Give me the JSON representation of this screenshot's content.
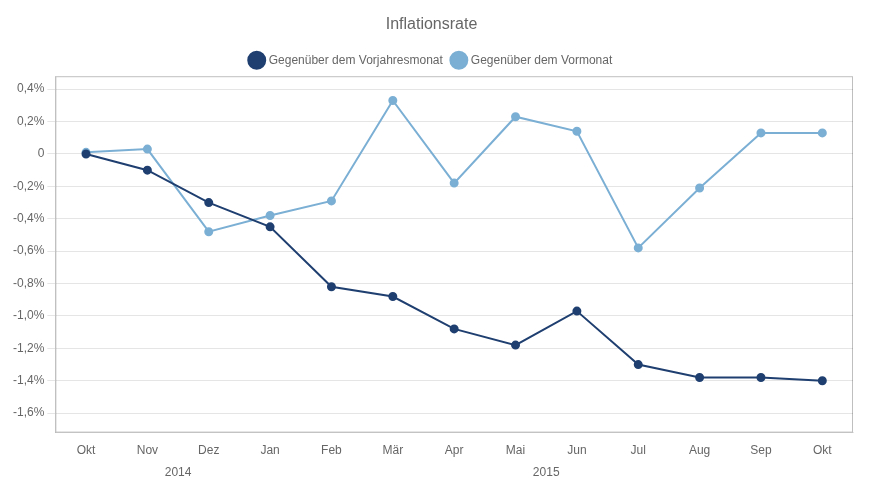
{
  "chart_data": {
    "type": "line",
    "title": "Inflationsrate",
    "categories": [
      "Okt",
      "Nov",
      "Dez",
      "Jan",
      "Feb",
      "Mär",
      "Apr",
      "Mai",
      "Jun",
      "Jul",
      "Aug",
      "Sep",
      "Okt"
    ],
    "series": [
      {
        "name": "Gegenüber dem Vorjahresmonat",
        "color": "#1f3f70",
        "marker": "circle",
        "values": [
          0.0,
          -0.1,
          -0.3,
          -0.45,
          -0.82,
          -0.88,
          -1.08,
          -1.18,
          -0.97,
          -1.3,
          -1.38,
          -1.38,
          -1.4
        ]
      },
      {
        "name": "Gegenüber dem Vormonat",
        "color": "#7bafd4",
        "marker": "circle",
        "values": [
          0.01,
          0.03,
          -0.48,
          -0.38,
          -0.29,
          0.33,
          -0.18,
          0.23,
          0.14,
          -0.58,
          -0.21,
          0.13,
          0.13
        ]
      }
    ],
    "ylim": [
      -1.72,
      0.48
    ],
    "yticks": [
      {
        "value": 0.4,
        "label": "0,4%"
      },
      {
        "value": 0.2,
        "label": "0,2%"
      },
      0.0,
      {
        "value": -0.2,
        "label": "-0,2%"
      },
      {
        "value": -0.4,
        "label": "-0,4%"
      },
      {
        "value": -0.6,
        "label": "-0,6%"
      },
      {
        "value": -0.8,
        "label": "-0,8%"
      },
      {
        "value": -1.0,
        "label": "-1,0%"
      },
      {
        "value": -1.2,
        "label": "-1,2%"
      },
      {
        "value": -1.4,
        "label": "-1,4%"
      },
      {
        "value": -1.6,
        "label": "-1,6%"
      }
    ],
    "annotations": [
      {
        "text": "2014",
        "x": 1.5
      },
      {
        "text": "2015",
        "x": 7.5
      }
    ],
    "grid": true,
    "legend": "top"
  }
}
